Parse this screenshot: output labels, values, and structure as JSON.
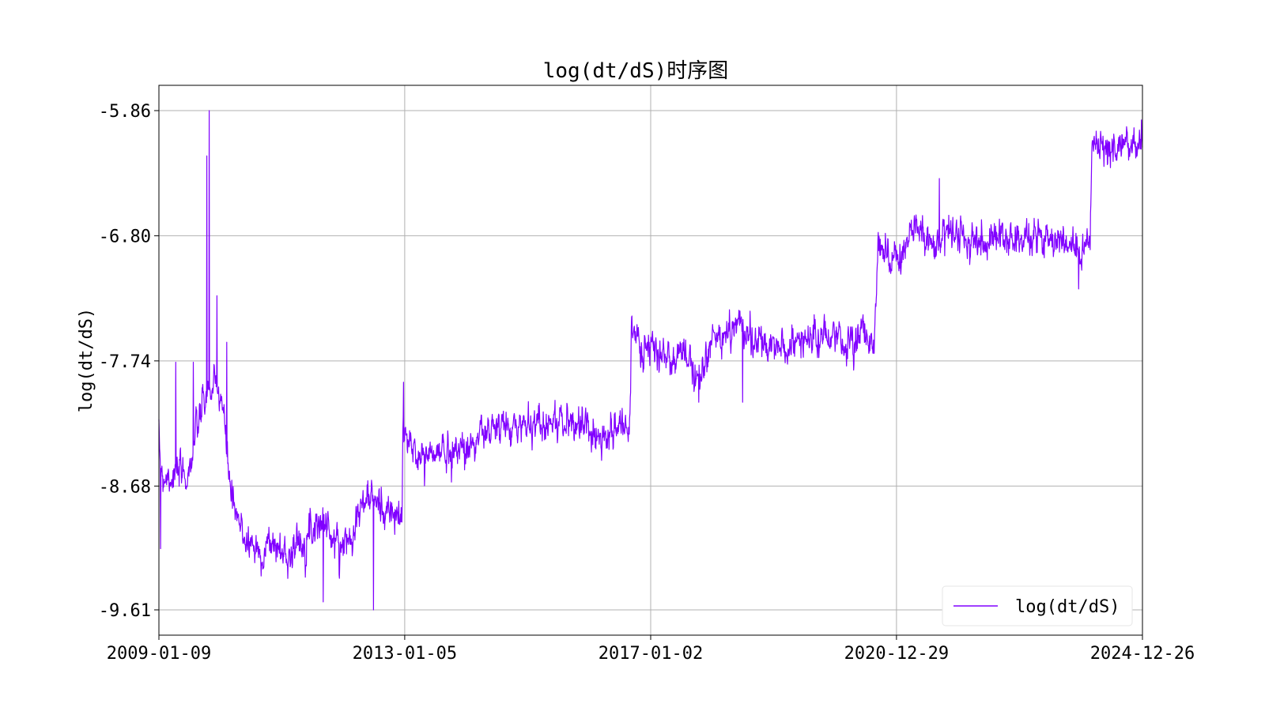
{
  "chart_data": {
    "type": "line",
    "title": "log(dt/dS)时序图",
    "xlabel": "",
    "ylabel": "log(dt/dS)",
    "x_range": [
      "2009-01-09",
      "2024-12-26"
    ],
    "ylim": [
      -9.8,
      -5.67
    ],
    "y_ticks": [
      -9.61,
      -8.68,
      -7.74,
      -6.8,
      -5.86
    ],
    "y_tick_labels": [
      "-9.61",
      "-8.68",
      "-7.74",
      "-6.80",
      "-5.86"
    ],
    "x_ticks": [
      "2009-01-09",
      "2013-01-05",
      "2017-01-02",
      "2020-12-29",
      "2024-12-26"
    ],
    "grid": true,
    "legend_position": "lower-right",
    "series": [
      {
        "name": "log(dt/dS)",
        "color": "#8000ff",
        "noise": 0.09,
        "x": [
          "2009-01-09",
          "2009-02-01",
          "2009-04-01",
          "2009-07-01",
          "2009-09-01",
          "2009-10-15",
          "2009-12-01",
          "2010-01-15",
          "2010-03-01",
          "2010-04-01",
          "2010-05-15",
          "2010-06-15",
          "2010-07-01",
          "2010-07-10",
          "2010-09-01",
          "2010-11-01",
          "2011-02-01",
          "2011-05-01",
          "2011-08-01",
          "2011-10-01",
          "2011-11-01",
          "2012-02-01",
          "2012-04-01",
          "2012-06-01",
          "2012-09-01",
          "2012-11-01",
          "2012-12-20",
          "2012-12-25",
          "2013-01-15",
          "2013-04-01",
          "2013-07-01",
          "2013-10-01",
          "2014-01-01",
          "2014-04-01",
          "2014-07-01",
          "2014-10-01",
          "2015-01-01",
          "2015-04-01",
          "2015-07-01",
          "2015-10-01",
          "2016-01-01",
          "2016-04-01",
          "2016-07-01",
          "2016-09-01",
          "2016-09-10",
          "2016-10-01",
          "2016-12-01",
          "2017-03-01",
          "2017-06-01",
          "2017-08-15",
          "2017-11-01",
          "2018-01-01",
          "2018-03-01",
          "2018-05-15",
          "2018-06-15",
          "2018-09-01",
          "2018-12-01",
          "2019-03-01",
          "2019-06-01",
          "2019-09-01",
          "2019-12-01",
          "2020-03-01",
          "2020-06-01",
          "2020-08-20",
          "2020-09-10",
          "2020-11-01",
          "2021-01-01",
          "2021-03-01",
          "2021-05-01",
          "2021-06-01",
          "2021-09-01",
          "2021-12-01",
          "2022-03-01",
          "2022-06-01",
          "2022-09-01",
          "2022-12-01",
          "2023-03-01",
          "2023-06-01",
          "2023-09-01",
          "2023-11-01",
          "2024-01-01",
          "2024-02-01",
          "2024-02-20",
          "2024-03-01",
          "2024-05-01",
          "2024-08-01",
          "2024-10-01",
          "2024-12-26"
        ],
        "y": [
          -8.4,
          -8.6,
          -8.6,
          -8.6,
          -8.2,
          -8.0,
          -7.95,
          -8.0,
          -8.6,
          -8.9,
          -9.0,
          -9.1,
          -9.1,
          -9.1,
          -9.2,
          -9.1,
          -9.2,
          -9.1,
          -8.95,
          -8.95,
          -9.1,
          -9.1,
          -8.9,
          -8.75,
          -8.85,
          -8.9,
          -8.95,
          -8.2,
          -8.35,
          -8.45,
          -8.45,
          -8.4,
          -8.4,
          -8.3,
          -8.25,
          -8.25,
          -8.2,
          -8.2,
          -8.2,
          -8.2,
          -8.25,
          -8.3,
          -8.25,
          -8.2,
          -7.45,
          -7.6,
          -7.65,
          -7.7,
          -7.75,
          -7.7,
          -7.85,
          -7.6,
          -7.55,
          -7.5,
          -7.4,
          -7.6,
          -7.65,
          -7.65,
          -7.6,
          -7.55,
          -7.6,
          -7.6,
          -7.55,
          -7.6,
          -6.85,
          -6.9,
          -6.95,
          -6.9,
          -6.7,
          -6.85,
          -6.82,
          -6.78,
          -6.85,
          -6.82,
          -6.82,
          -6.8,
          -6.82,
          -6.8,
          -6.85,
          -6.85,
          -6.95,
          -6.8,
          -6.85,
          -6.12,
          -6.18,
          -6.15,
          -6.13,
          -6.08
        ],
        "spikes": [
          {
            "x": "2009-11-03",
            "y": -5.86
          },
          {
            "x": "2009-10-20",
            "y": -6.2
          },
          {
            "x": "2009-12-20",
            "y": -7.25
          },
          {
            "x": "2010-02-15",
            "y": -7.6
          },
          {
            "x": "2009-04-20",
            "y": -7.75
          },
          {
            "x": "2009-08-01",
            "y": -7.75
          },
          {
            "x": "2009-01-20",
            "y": -9.15
          },
          {
            "x": "2012-07-05",
            "y": -9.61
          },
          {
            "x": "2011-09-10",
            "y": -9.55
          },
          {
            "x": "2012-12-30",
            "y": -7.9
          },
          {
            "x": "2013-10-10",
            "y": -8.65
          },
          {
            "x": "2017-10-15",
            "y": -8.05
          },
          {
            "x": "2018-07-01",
            "y": -8.05
          },
          {
            "x": "2021-09-10",
            "y": -6.37
          },
          {
            "x": "2023-12-15",
            "y": -7.2
          },
          {
            "x": "2024-12-20",
            "y": -5.93
          }
        ]
      }
    ]
  }
}
